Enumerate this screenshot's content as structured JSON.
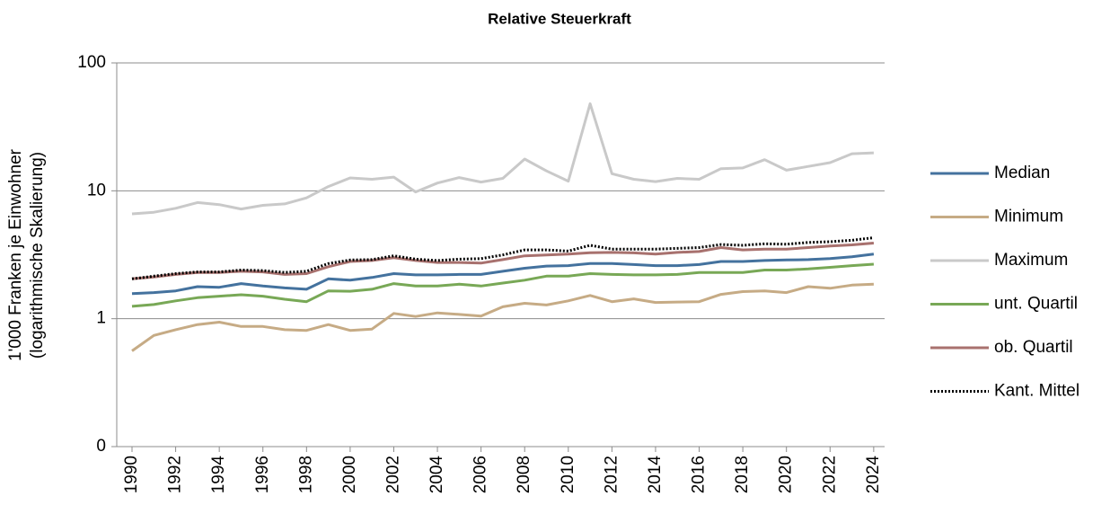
{
  "chart_data": {
    "type": "line",
    "title": "Relative Steuerkraft",
    "ylabel": [
      "1'000 Franken je Einwohner",
      "(logarithmische Skalierung)"
    ],
    "log_scale": true,
    "grid": true,
    "legend": "right",
    "x": [
      1990,
      1991,
      1992,
      1993,
      1994,
      1995,
      1996,
      1997,
      1998,
      1999,
      2000,
      2001,
      2002,
      2003,
      2004,
      2005,
      2006,
      2007,
      2008,
      2009,
      2010,
      2011,
      2012,
      2013,
      2014,
      2015,
      2016,
      2017,
      2018,
      2019,
      2020,
      2021,
      2022,
      2023,
      2024
    ],
    "xlim": [
      1989.3,
      2024.5
    ],
    "xticks": [
      1990,
      1992,
      1994,
      1996,
      1998,
      2000,
      2002,
      2004,
      2006,
      2008,
      2010,
      2012,
      2014,
      2016,
      2018,
      2020,
      2022,
      2024
    ],
    "ylim": [
      0.1,
      100
    ],
    "yticks": [
      {
        "value": 0.1,
        "label": "0"
      },
      1,
      10,
      100
    ],
    "series": [
      {
        "name": "Median",
        "color": "#44729e",
        "style": "solid",
        "values": [
          1.57,
          1.6,
          1.65,
          1.78,
          1.76,
          1.88,
          1.8,
          1.74,
          1.7,
          2.05,
          2.0,
          2.1,
          2.25,
          2.2,
          2.2,
          2.22,
          2.22,
          2.35,
          2.48,
          2.58,
          2.6,
          2.7,
          2.7,
          2.65,
          2.6,
          2.6,
          2.65,
          2.8,
          2.8,
          2.85,
          2.88,
          2.9,
          2.95,
          3.05,
          3.2
        ]
      },
      {
        "name": "Minimum",
        "color": "#c6ab85",
        "style": "solid",
        "values": [
          0.56,
          0.74,
          0.82,
          0.9,
          0.94,
          0.87,
          0.87,
          0.82,
          0.81,
          0.9,
          0.81,
          0.83,
          1.1,
          1.04,
          1.11,
          1.08,
          1.05,
          1.24,
          1.32,
          1.28,
          1.38,
          1.52,
          1.36,
          1.43,
          1.34,
          1.35,
          1.36,
          1.55,
          1.63,
          1.65,
          1.6,
          1.78,
          1.73,
          1.83,
          1.86
        ]
      },
      {
        "name": "Maximum",
        "color": "#c9c9c9",
        "style": "solid",
        "values": [
          6.6,
          6.8,
          7.3,
          8.1,
          7.8,
          7.2,
          7.7,
          7.9,
          8.8,
          10.8,
          12.6,
          12.3,
          12.8,
          9.8,
          11.5,
          12.7,
          11.7,
          12.5,
          17.7,
          14.3,
          11.9,
          48,
          13.6,
          12.3,
          11.8,
          12.5,
          12.3,
          14.9,
          15.1,
          17.5,
          14.5,
          15.5,
          16.6,
          19.5,
          19.8
        ]
      },
      {
        "name": "unt. Quartil",
        "color": "#78a856",
        "style": "solid",
        "values": [
          1.25,
          1.29,
          1.38,
          1.46,
          1.5,
          1.54,
          1.5,
          1.42,
          1.36,
          1.65,
          1.64,
          1.7,
          1.88,
          1.8,
          1.8,
          1.86,
          1.8,
          1.9,
          2.0,
          2.15,
          2.15,
          2.25,
          2.22,
          2.2,
          2.2,
          2.22,
          2.3,
          2.3,
          2.3,
          2.4,
          2.4,
          2.45,
          2.52,
          2.6,
          2.67
        ]
      },
      {
        "name": "ob. Quartil",
        "color": "#a8716e",
        "style": "solid",
        "values": [
          2.05,
          2.12,
          2.22,
          2.3,
          2.3,
          2.35,
          2.32,
          2.22,
          2.25,
          2.55,
          2.8,
          2.85,
          3.0,
          2.85,
          2.75,
          2.75,
          2.72,
          2.9,
          3.1,
          3.15,
          3.2,
          3.28,
          3.3,
          3.27,
          3.2,
          3.3,
          3.35,
          3.6,
          3.45,
          3.5,
          3.5,
          3.6,
          3.7,
          3.78,
          3.9
        ]
      },
      {
        "name": "Kant. Mittel",
        "color": "#000000",
        "style": "dotted",
        "values": [
          2.05,
          2.15,
          2.25,
          2.32,
          2.32,
          2.4,
          2.38,
          2.3,
          2.35,
          2.7,
          2.88,
          2.9,
          3.1,
          2.92,
          2.85,
          2.92,
          2.95,
          3.15,
          3.45,
          3.45,
          3.38,
          3.75,
          3.5,
          3.5,
          3.5,
          3.55,
          3.6,
          3.8,
          3.75,
          3.85,
          3.82,
          3.95,
          4.0,
          4.1,
          4.3
        ]
      }
    ]
  }
}
